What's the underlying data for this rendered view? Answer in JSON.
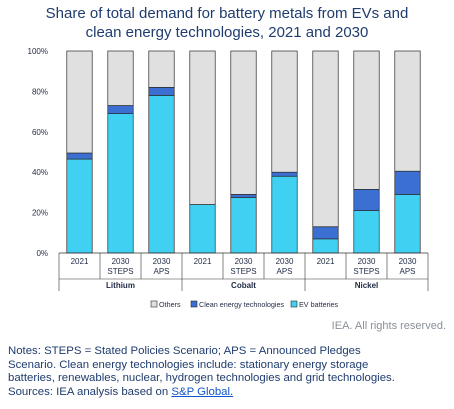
{
  "title_lines": [
    "Share of total demand for battery metals from EVs and",
    "clean energy technologies, 2021 and 2030"
  ],
  "chart_data": {
    "type": "bar",
    "stacked": true,
    "ylim": [
      0,
      100
    ],
    "yticks": [
      "0%",
      "20%",
      "40%",
      "60%",
      "80%",
      "100%"
    ],
    "groups": [
      {
        "name": "Lithium",
        "categories": [
          [
            "2021"
          ],
          [
            "2030",
            "STEPS"
          ],
          [
            "2030",
            "APS"
          ]
        ]
      },
      {
        "name": "Cobalt",
        "categories": [
          [
            "2021"
          ],
          [
            "2030",
            "STEPS"
          ],
          [
            "2030",
            "APS"
          ]
        ]
      },
      {
        "name": "Nickel",
        "categories": [
          [
            "2021"
          ],
          [
            "2030",
            "STEPS"
          ],
          [
            "2030",
            "APS"
          ]
        ]
      }
    ],
    "series": [
      {
        "name": "EV batteries",
        "color": "#3fd0f2",
        "values": [
          46.5,
          69,
          78,
          24,
          27.5,
          38,
          7,
          21,
          29
        ]
      },
      {
        "name": "Clean energy technologies",
        "color": "#3b6fd1",
        "values": [
          3,
          4,
          4,
          0,
          1.5,
          2,
          6,
          10.5,
          11.5
        ]
      },
      {
        "name": "Others",
        "color": "#e0e0e0",
        "values": [
          50.5,
          27,
          18,
          76,
          71,
          60,
          87,
          68.5,
          59.5
        ]
      }
    ],
    "legend_order": [
      "Others",
      "Clean energy technologies",
      "EV batteries"
    ],
    "legend_labels": [
      "Others",
      "Clean energy technologies",
      "EV batteries"
    ],
    "legend_position": "bottom",
    "grid": false
  },
  "footer": {
    "rights": "IEA. All rights reserved.",
    "notes_lines": [
      "Notes: STEPS = Stated Policies Scenario; APS = Announced Pledges",
      "Scenario. Clean energy technologies include: stationary energy storage",
      "batteries, renewables, nuclear, hydrogen technologies and grid technologies."
    ],
    "sources_prefix": "Sources: IEA analysis based on ",
    "sources_link": "S&P Global."
  }
}
